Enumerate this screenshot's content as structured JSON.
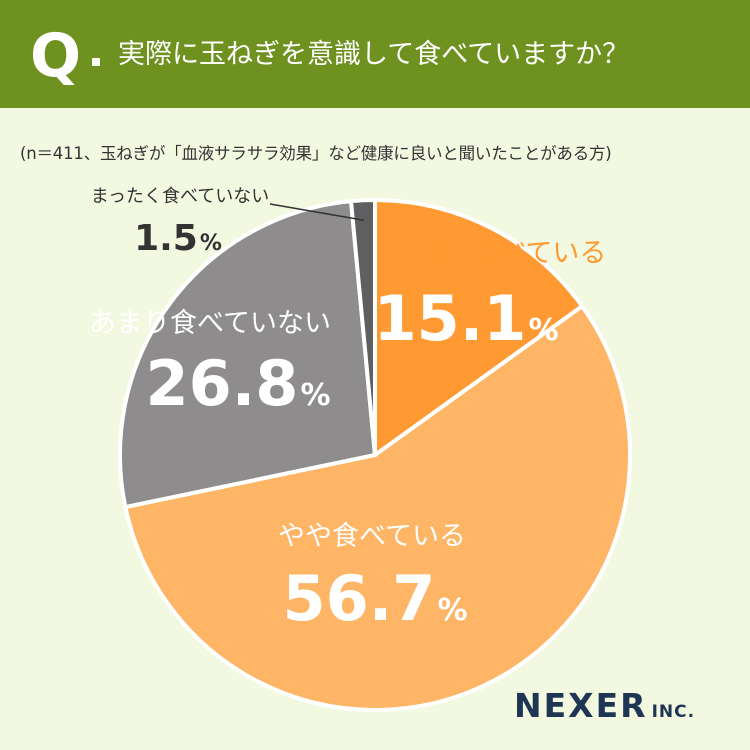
{
  "header": {
    "q_mark": "Q",
    "question": "実際に玉ねぎを意識して食べていますか？"
  },
  "note": "(n＝411、玉ねぎが「血液サラサラ効果」など健康に良いと聞いたことがある方)",
  "logo": {
    "main": "NEXER",
    "sub": "INC."
  },
  "chart_data": {
    "type": "pie",
    "slices": [
      {
        "label": "とても食べている",
        "value": 15.1,
        "display": "15.1",
        "color": "#ff9a32"
      },
      {
        "label": "やや食べている",
        "value": 56.7,
        "display": "56.7",
        "color": "#feb566"
      },
      {
        "label": "あまり食べていない",
        "value": 26.8,
        "display": "26.8",
        "color": "#8f8c8d"
      },
      {
        "label": "まったく食べていない",
        "value": 1.5,
        "display": "1.5",
        "color": "#5f5f61"
      }
    ],
    "unit": "%",
    "start": "12 o'clock",
    "direction": "clockwise"
  }
}
